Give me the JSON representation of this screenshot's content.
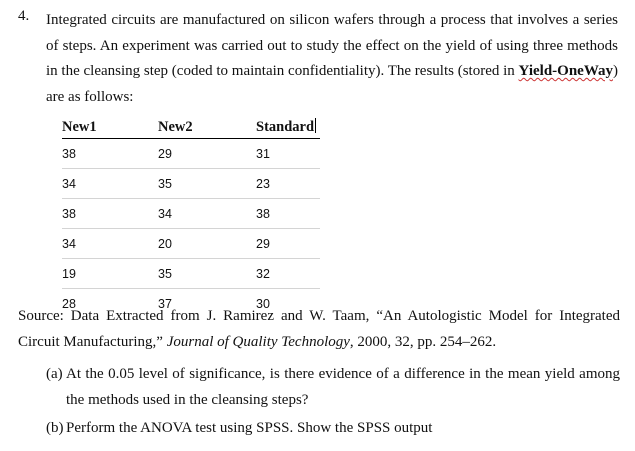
{
  "question": {
    "number": "4.",
    "intro": "Integrated circuits are manufactured on silicon wafers through a process that involves a series of steps. An experiment was carried out to study the effect on the yield of using three methods in the cleansing step (coded to maintain confidentiality). The results (stored in ",
    "file_name": "Yield-OneWay",
    "intro_end": ") are as follows:"
  },
  "table": {
    "headers": [
      "New1",
      "New2",
      "Standard"
    ],
    "rows": [
      [
        "38",
        "29",
        "31"
      ],
      [
        "34",
        "35",
        "23"
      ],
      [
        "38",
        "34",
        "38"
      ],
      [
        "34",
        "20",
        "29"
      ],
      [
        "19",
        "35",
        "32"
      ],
      [
        "28",
        "37",
        "30"
      ]
    ]
  },
  "source": {
    "lead": "Source: Data Extracted from J. Ramirez and W. Taam, “An Autologistic Model for Integrated Circuit Manufacturing,” ",
    "journal": "Journal of Quality Technology",
    "tail": ", 2000, 32, pp. 254–262."
  },
  "parts": [
    {
      "label": "(a)",
      "text": "At the 0.05 level of significance, is there evidence of a difference in the mean yield among the methods used in the cleansing steps?"
    },
    {
      "label": "(b)",
      "text": "Perform the ANOVA test using SPSS. Show the SPSS output"
    }
  ]
}
